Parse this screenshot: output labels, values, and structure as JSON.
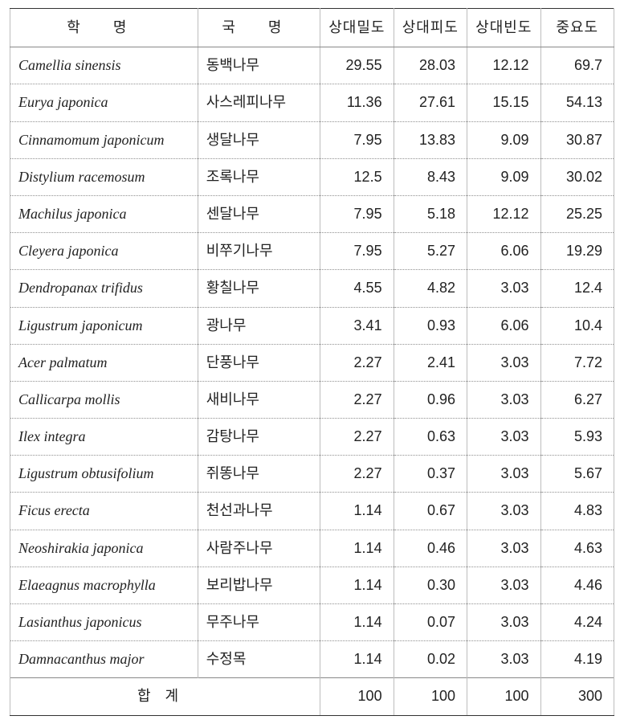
{
  "columns": [
    {
      "key": "sci",
      "label": "학 명"
    },
    {
      "key": "kor",
      "label": "국 명"
    },
    {
      "key": "rd",
      "label": "상대밀도"
    },
    {
      "key": "rc",
      "label": "상대피도"
    },
    {
      "key": "rf",
      "label": "상대빈도"
    },
    {
      "key": "iv",
      "label": "중요도"
    }
  ],
  "rows": [
    {
      "sci": "Camellia sinensis",
      "kor": "동백나무",
      "rd": "29.55",
      "rc": "28.03",
      "rf": "12.12",
      "iv": "69.7"
    },
    {
      "sci": "Eurya japonica",
      "kor": "사스레피나무",
      "rd": "11.36",
      "rc": "27.61",
      "rf": "15.15",
      "iv": "54.13"
    },
    {
      "sci": "Cinnamomum japonicum",
      "kor": "생달나무",
      "rd": "7.95",
      "rc": "13.83",
      "rf": "9.09",
      "iv": "30.87"
    },
    {
      "sci": "Distylium racemosum",
      "kor": "조록나무",
      "rd": "12.5",
      "rc": "8.43",
      "rf": "9.09",
      "iv": "30.02"
    },
    {
      "sci": "Machilus japonica",
      "kor": "센달나무",
      "rd": "7.95",
      "rc": "5.18",
      "rf": "12.12",
      "iv": "25.25"
    },
    {
      "sci": "Cleyera japonica",
      "kor": "비쭈기나무",
      "rd": "7.95",
      "rc": "5.27",
      "rf": "6.06",
      "iv": "19.29"
    },
    {
      "sci": "Dendropanax trifidus",
      "kor": "황칠나무",
      "rd": "4.55",
      "rc": "4.82",
      "rf": "3.03",
      "iv": "12.4"
    },
    {
      "sci": "Ligustrum japonicum",
      "kor": "광나무",
      "rd": "3.41",
      "rc": "0.93",
      "rf": "6.06",
      "iv": "10.4"
    },
    {
      "sci": "Acer palmatum",
      "kor": "단풍나무",
      "rd": "2.27",
      "rc": "2.41",
      "rf": "3.03",
      "iv": "7.72"
    },
    {
      "sci": "Callicarpa mollis",
      "kor": "새비나무",
      "rd": "2.27",
      "rc": "0.96",
      "rf": "3.03",
      "iv": "6.27"
    },
    {
      "sci": "Ilex integra",
      "kor": "감탕나무",
      "rd": "2.27",
      "rc": "0.63",
      "rf": "3.03",
      "iv": "5.93"
    },
    {
      "sci": "Ligustrum obtusifolium",
      "kor": "쥐똥나무",
      "rd": "2.27",
      "rc": "0.37",
      "rf": "3.03",
      "iv": "5.67"
    },
    {
      "sci": "Ficus erecta",
      "kor": "천선과나무",
      "rd": "1.14",
      "rc": "0.67",
      "rf": "3.03",
      "iv": "4.83"
    },
    {
      "sci": "Neoshirakia japonica",
      "kor": "사람주나무",
      "rd": "1.14",
      "rc": "0.46",
      "rf": "3.03",
      "iv": "4.63"
    },
    {
      "sci": "Elaeagnus macrophylla",
      "kor": "보리밥나무",
      "rd": "1.14",
      "rc": "0.30",
      "rf": "3.03",
      "iv": "4.46"
    },
    {
      "sci": "Lasianthus japonicus",
      "kor": "무주나무",
      "rd": "1.14",
      "rc": "0.07",
      "rf": "3.03",
      "iv": "4.24"
    },
    {
      "sci": "Damnacanthus major",
      "kor": "수정목",
      "rd": "1.14",
      "rc": "0.02",
      "rf": "3.03",
      "iv": "4.19"
    }
  ],
  "total": {
    "label": "합계",
    "rd": "100",
    "rc": "100",
    "rf": "100",
    "iv": "300"
  }
}
